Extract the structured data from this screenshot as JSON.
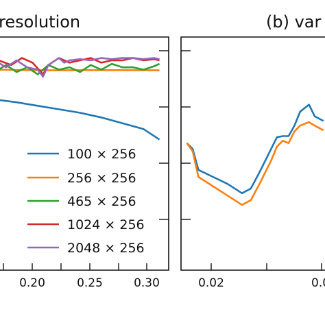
{
  "chart_data": [
    {
      "type": "line",
      "title": "resolution",
      "x_ticks": [
        "0.20",
        "0.25",
        "0.30"
      ],
      "xlim": [
        0.143,
        0.305
      ],
      "ylim": [
        0,
        1
      ],
      "legend_placement": "lower-right",
      "series": [
        {
          "name": "100 × 256",
          "color": "#1f77b4",
          "x": [
            0.143,
            0.16,
            0.18,
            0.2,
            0.22,
            0.24,
            0.26,
            0.28,
            0.295
          ],
          "y": [
            0.73,
            0.72,
            0.705,
            0.69,
            0.675,
            0.655,
            0.63,
            0.605,
            0.56
          ]
        },
        {
          "name": "256 × 256",
          "color": "#ff7f0e",
          "x": [
            0.143,
            0.17,
            0.2,
            0.23,
            0.26,
            0.295
          ],
          "y": [
            0.86,
            0.858,
            0.857,
            0.858,
            0.858,
            0.857
          ]
        },
        {
          "name": "465 × 256",
          "color": "#2ca02c",
          "x": [
            0.143,
            0.15,
            0.16,
            0.17,
            0.18,
            0.19,
            0.2,
            0.21,
            0.22,
            0.23,
            0.24,
            0.25,
            0.26,
            0.27,
            0.28,
            0.29,
            0.295
          ],
          "y": [
            0.86,
            0.88,
            0.85,
            0.87,
            0.84,
            0.88,
            0.86,
            0.87,
            0.85,
            0.88,
            0.86,
            0.885,
            0.87,
            0.87,
            0.86,
            0.875,
            0.885
          ]
        },
        {
          "name": "1024 × 256",
          "color": "#d62728",
          "x": [
            0.143,
            0.155,
            0.165,
            0.175,
            0.185,
            0.19,
            0.2,
            0.21,
            0.22,
            0.23,
            0.24,
            0.25,
            0.26,
            0.27,
            0.28,
            0.29,
            0.295
          ],
          "y": [
            0.9,
            0.88,
            0.91,
            0.89,
            0.84,
            0.88,
            0.91,
            0.89,
            0.9,
            0.91,
            0.89,
            0.9,
            0.9,
            0.91,
            0.9,
            0.905,
            0.9
          ]
        },
        {
          "name": "2048 × 256",
          "color": "#9467bd",
          "x": [
            0.143,
            0.15,
            0.16,
            0.17,
            0.18,
            0.185,
            0.19,
            0.2,
            0.205,
            0.21,
            0.22,
            0.23,
            0.24,
            0.25,
            0.26,
            0.27,
            0.28,
            0.29,
            0.295
          ],
          "y": [
            0.89,
            0.87,
            0.9,
            0.87,
            0.86,
            0.83,
            0.88,
            0.91,
            0.89,
            0.9,
            0.905,
            0.9,
            0.91,
            0.905,
            0.91,
            0.91,
            0.905,
            0.91,
            0.905
          ]
        }
      ]
    },
    {
      "type": "line",
      "title": "(b) var",
      "x_ticks": [
        "0.02",
        "0.0"
      ],
      "xlim": [
        0.0145,
        0.0395
      ],
      "ylim": [
        0,
        1
      ],
      "series": [
        {
          "name": "",
          "color": "#1f77b4",
          "x": [
            0.0155,
            0.0165,
            0.0175,
            0.02,
            0.0225,
            0.025,
            0.0265,
            0.028,
            0.03,
            0.031,
            0.032,
            0.033,
            0.034,
            0.035,
            0.0365,
            0.0375,
            0.039
          ],
          "y": [
            0.545,
            0.52,
            0.43,
            0.4,
            0.37,
            0.33,
            0.35,
            0.42,
            0.52,
            0.57,
            0.575,
            0.575,
            0.62,
            0.68,
            0.71,
            0.66,
            0.64
          ]
        },
        {
          "name": "",
          "color": "#ff7f0e",
          "x": [
            0.0155,
            0.0165,
            0.0175,
            0.02,
            0.0225,
            0.025,
            0.0265,
            0.028,
            0.03,
            0.031,
            0.032,
            0.033,
            0.034,
            0.035,
            0.0365,
            0.0375,
            0.039
          ],
          "y": [
            0.545,
            0.51,
            0.4,
            0.36,
            0.32,
            0.28,
            0.3,
            0.37,
            0.47,
            0.53,
            0.555,
            0.545,
            0.595,
            0.62,
            0.635,
            0.62,
            0.6
          ]
        }
      ]
    }
  ]
}
